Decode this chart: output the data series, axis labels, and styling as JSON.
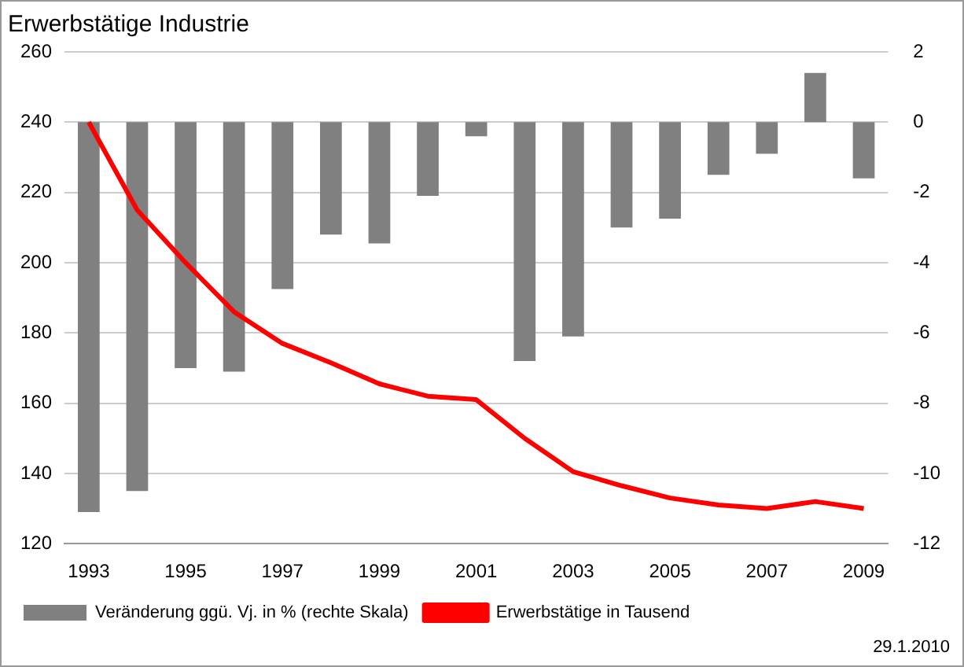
{
  "chart_data": {
    "type": "bar",
    "title": "Erwerbstätige Industrie",
    "categories": [
      "1993",
      null,
      "1995",
      null,
      "1997",
      null,
      "1999",
      null,
      "2001",
      null,
      "2003",
      null,
      "2005",
      null,
      "2007",
      null,
      "2009"
    ],
    "series": [
      {
        "name": "Veränderung ggü. Vj. in % (rechte Skala)",
        "axis": "y2",
        "color": "#808080",
        "values": [
          -11.1,
          -10.5,
          -7.0,
          -7.1,
          -4.75,
          -3.2,
          -3.45,
          -2.1,
          -0.4,
          -6.8,
          -6.1,
          -3.0,
          -2.75,
          -1.5,
          -0.9,
          1.4,
          -1.6
        ]
      },
      {
        "name": "Erwerbstätige in Tausend",
        "type": "line",
        "color": "#ff0000",
        "values": [
          240,
          215,
          200,
          186,
          177,
          171.5,
          165.5,
          162,
          161,
          150,
          140.5,
          136.5,
          133,
          131,
          130,
          132,
          130
        ]
      }
    ],
    "ylim": [
      120,
      260
    ],
    "yticks": [
      120,
      140,
      160,
      180,
      200,
      220,
      240,
      260
    ],
    "y2lim": [
      -12,
      2
    ],
    "y2ticks": [
      -12,
      -10,
      -8,
      -6,
      -4,
      -2,
      0,
      2
    ],
    "grid": "y",
    "legend": "bottom",
    "marker": "none",
    "annotations": [
      "29.1.2010"
    ]
  }
}
